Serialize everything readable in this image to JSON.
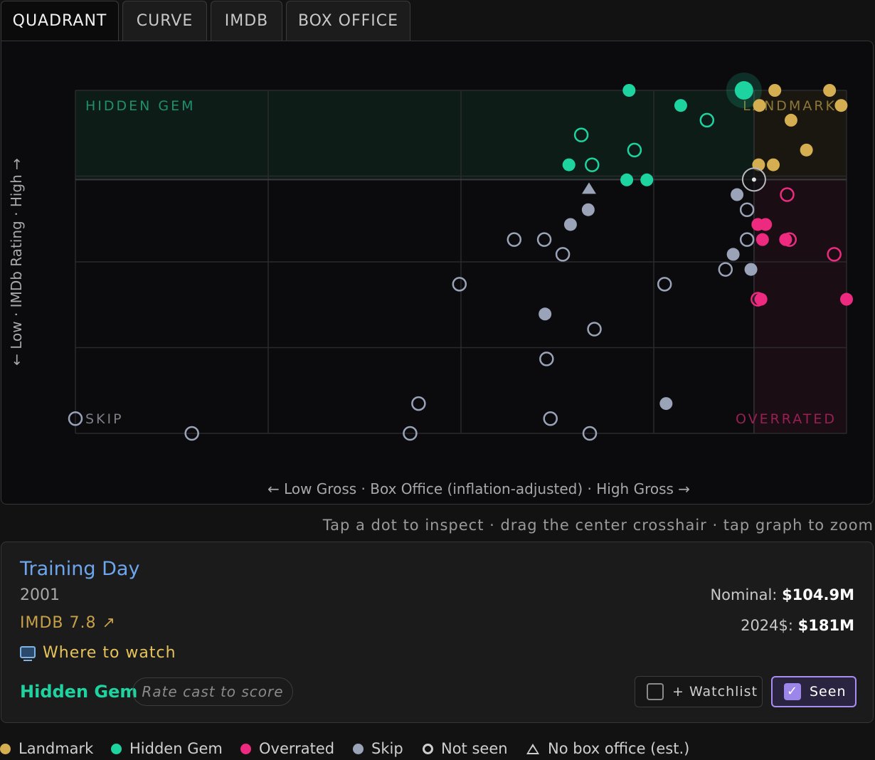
{
  "tabs": [
    "QUADRANT",
    "CURVE",
    "IMDB",
    "BOX OFFICE"
  ],
  "colors": {
    "landmark": "#d6ae52",
    "hidden_gem": "#1dd4a0",
    "overrated": "#ee2a80",
    "skip": "#9aa3b8",
    "grid": "#2a2a2e"
  },
  "chart_data": {
    "type": "scatter",
    "xlabel": "← Low Gross · Box Office (inflation-adjusted) · High Gross →",
    "ylabel": "← Low · IMDb Rating · High →",
    "xlim": [
      0,
      100
    ],
    "ylim": [
      0,
      100
    ],
    "crosshair": {
      "x": 88,
      "y": 74
    },
    "quadrant_labels": {
      "top_left": "HIDDEN GEM",
      "top_right": "LANDMARK",
      "bottom_left": "SKIP",
      "bottom_right": "OVERRATED"
    },
    "grid": true,
    "points": [
      {
        "x": 71.8,
        "y": 100,
        "cat": "hidden_gem",
        "seen": true
      },
      {
        "x": 78.5,
        "y": 95.6,
        "cat": "hidden_gem",
        "seen": true
      },
      {
        "x": 86.7,
        "y": 100,
        "cat": "hidden_gem",
        "seen": true,
        "selected": true
      },
      {
        "x": 81.9,
        "y": 91.3,
        "cat": "hidden_gem",
        "seen": false
      },
      {
        "x": 65.6,
        "y": 87,
        "cat": "hidden_gem",
        "seen": false
      },
      {
        "x": 72.5,
        "y": 82.6,
        "cat": "hidden_gem",
        "seen": false
      },
      {
        "x": 64,
        "y": 78.3,
        "cat": "hidden_gem",
        "seen": true
      },
      {
        "x": 67,
        "y": 78.3,
        "cat": "hidden_gem",
        "seen": false
      },
      {
        "x": 71.5,
        "y": 73.9,
        "cat": "hidden_gem",
        "seen": true
      },
      {
        "x": 74.1,
        "y": 73.9,
        "cat": "hidden_gem",
        "seen": true
      },
      {
        "x": 90.7,
        "y": 100,
        "cat": "landmark",
        "seen": true
      },
      {
        "x": 97.8,
        "y": 100,
        "cat": "landmark",
        "seen": true
      },
      {
        "x": 88.7,
        "y": 95.6,
        "cat": "landmark",
        "seen": true
      },
      {
        "x": 99.3,
        "y": 95.6,
        "cat": "landmark",
        "seen": true
      },
      {
        "x": 92.8,
        "y": 91.3,
        "cat": "landmark",
        "seen": true
      },
      {
        "x": 94.8,
        "y": 82.6,
        "cat": "landmark",
        "seen": true
      },
      {
        "x": 88.6,
        "y": 78.3,
        "cat": "landmark",
        "seen": true
      },
      {
        "x": 90.5,
        "y": 78.3,
        "cat": "landmark",
        "seen": true
      },
      {
        "x": 92.3,
        "y": 69.6,
        "cat": "overrated",
        "seen": false
      },
      {
        "x": 88.5,
        "y": 60.9,
        "cat": "overrated",
        "seen": true
      },
      {
        "x": 89.5,
        "y": 60.9,
        "cat": "overrated",
        "seen": true
      },
      {
        "x": 89.1,
        "y": 56.5,
        "cat": "overrated",
        "seen": true
      },
      {
        "x": 92.1,
        "y": 56.5,
        "cat": "overrated",
        "seen": true
      },
      {
        "x": 92.6,
        "y": 56.5,
        "cat": "overrated",
        "seen": false
      },
      {
        "x": 98.4,
        "y": 52.2,
        "cat": "overrated",
        "seen": false
      },
      {
        "x": 88.5,
        "y": 39.1,
        "cat": "overrated",
        "seen": false
      },
      {
        "x": 88.9,
        "y": 39.1,
        "cat": "overrated",
        "seen": true
      },
      {
        "x": 100,
        "y": 39.1,
        "cat": "overrated",
        "seen": true
      },
      {
        "x": 66.6,
        "y": 71.3,
        "cat": "skip",
        "seen": true,
        "estimated": true
      },
      {
        "x": 66.5,
        "y": 65.2,
        "cat": "skip",
        "seen": true
      },
      {
        "x": 64.2,
        "y": 60.9,
        "cat": "skip",
        "seen": true
      },
      {
        "x": 85.8,
        "y": 69.6,
        "cat": "skip",
        "seen": true
      },
      {
        "x": 87.1,
        "y": 65.2,
        "cat": "skip",
        "seen": false
      },
      {
        "x": 87.1,
        "y": 56.5,
        "cat": "skip",
        "seen": false
      },
      {
        "x": 85.3,
        "y": 52.2,
        "cat": "skip",
        "seen": true
      },
      {
        "x": 87.6,
        "y": 47.8,
        "cat": "skip",
        "seen": true
      },
      {
        "x": 84.3,
        "y": 47.8,
        "cat": "skip",
        "seen": false
      },
      {
        "x": 56.9,
        "y": 56.5,
        "cat": "skip",
        "seen": false
      },
      {
        "x": 60.8,
        "y": 56.5,
        "cat": "skip",
        "seen": false
      },
      {
        "x": 63.2,
        "y": 52.2,
        "cat": "skip",
        "seen": false
      },
      {
        "x": 49.8,
        "y": 43.5,
        "cat": "skip",
        "seen": false
      },
      {
        "x": 76.4,
        "y": 43.5,
        "cat": "skip",
        "seen": false
      },
      {
        "x": 60.9,
        "y": 34.8,
        "cat": "skip",
        "seen": true
      },
      {
        "x": 67.3,
        "y": 30.4,
        "cat": "skip",
        "seen": false
      },
      {
        "x": 61.1,
        "y": 21.7,
        "cat": "skip",
        "seen": false
      },
      {
        "x": 44.5,
        "y": 8.7,
        "cat": "skip",
        "seen": false
      },
      {
        "x": 76.6,
        "y": 8.7,
        "cat": "skip",
        "seen": true
      },
      {
        "x": 0,
        "y": 4.3,
        "cat": "skip",
        "seen": false
      },
      {
        "x": 61.6,
        "y": 4.3,
        "cat": "skip",
        "seen": false
      },
      {
        "x": 15.1,
        "y": 0,
        "cat": "skip",
        "seen": false
      },
      {
        "x": 43.4,
        "y": 0,
        "cat": "skip",
        "seen": false
      },
      {
        "x": 66.7,
        "y": 0,
        "cat": "skip",
        "seen": false
      }
    ]
  },
  "hint": "Tap a dot to inspect · drag the center crosshair · tap graph to zoom",
  "detail": {
    "title": "Training Day",
    "year": "2001",
    "imdb": "IMDB 7.8 ↗",
    "where_to_watch": "Where to watch",
    "category": "Hidden Gem",
    "rate_cast": "Rate cast to score",
    "nominal_label": "Nominal: ",
    "nominal_value": "$104.9M",
    "adjusted_label": "2024$: ",
    "adjusted_value": "$181M",
    "watchlist_label": "+ Watchlist",
    "seen_label": "Seen",
    "checkmark": "✓"
  },
  "legend": [
    {
      "label": "Landmark",
      "cat": "landmark"
    },
    {
      "label": "Hidden Gem",
      "cat": "hidden_gem"
    },
    {
      "label": "Overrated",
      "cat": "overrated"
    },
    {
      "label": "Skip",
      "cat": "skip"
    },
    {
      "label": "Not seen",
      "cat": "not_seen"
    },
    {
      "label": "No box office (est.)",
      "cat": "estimated"
    }
  ]
}
